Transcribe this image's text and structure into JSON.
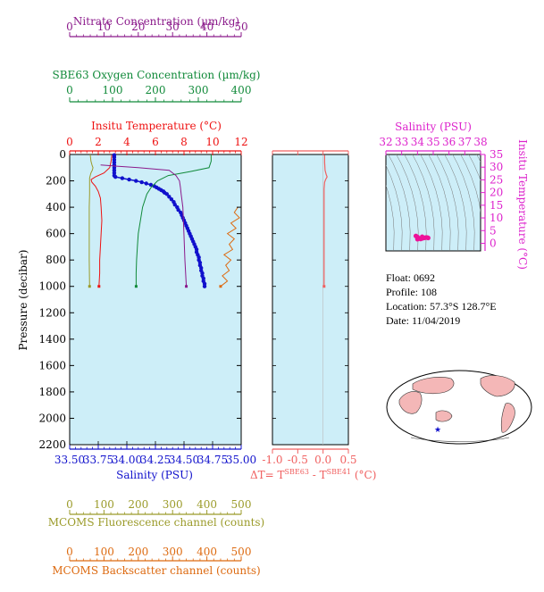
{
  "colors": {
    "nitrate": "#8b1a8b",
    "oxygen": "#118a3a",
    "temperature": "#ee1111",
    "salinity": "#1010cc",
    "fluorescence": "#9b9b2a",
    "backscatter": "#dd6a10",
    "delta": "#f06060",
    "ts_axis": "#dd22cc",
    "ts_points": "#ee1199",
    "plot_bg": "#cdeef8",
    "land": "#f4b7b7",
    "sea": "#ffffff"
  },
  "labels": {
    "nitrate_axis": "Nitrate Concentration (µm/kg)",
    "oxygen_axis": "SBE63 Oxygen Concentration (µm/kg)",
    "temperature_axis": "Insitu Temperature (°C)",
    "pressure_axis": "Pressure (decibar)",
    "salinity_axis": "Salinity (PSU)",
    "fluorescence_axis": "MCOMS Fluorescence channel (counts)",
    "backscatter_axis": "MCOMS Backscatter channel (counts)",
    "delta_prefix": "ΔT= T",
    "delta_sup1": "SBE63",
    "delta_mid": " - T",
    "delta_sup2": "SBE41",
    "delta_unit": " (°C)",
    "ts_top_axis": "Salinity (PSU)",
    "ts_right_axis": "Insitu Temperature (°C)"
  },
  "float_info": {
    "float": "Float:  0692",
    "profile": "Profile:  108",
    "location": "Location:  57.3°S  128.7°E",
    "date": "Date:  11/04/2019"
  },
  "chart_data": [
    {
      "type": "line",
      "panel": "profile",
      "ylabel": "Pressure (decibar)",
      "ylim": [
        2200,
        0
      ],
      "yticks": [
        0,
        200,
        400,
        600,
        800,
        1000,
        1200,
        1400,
        1600,
        1800,
        2000,
        2200
      ],
      "axes": {
        "nitrate": {
          "label": "Nitrate Concentration (µm/kg)",
          "range": [
            0,
            50
          ],
          "ticks": [
            0,
            10,
            20,
            30,
            40,
            50
          ]
        },
        "oxygen": {
          "label": "SBE63 Oxygen Concentration (µm/kg)",
          "range": [
            0,
            400
          ],
          "ticks": [
            0,
            100,
            200,
            300,
            400
          ]
        },
        "temperature": {
          "label": "Insitu Temperature (°C)",
          "range": [
            0,
            12
          ],
          "ticks": [
            0,
            2,
            4,
            6,
            8,
            10,
            12
          ]
        },
        "salinity": {
          "label": "Salinity (PSU)",
          "range": [
            33.5,
            35.0
          ],
          "ticks": [
            "33.50",
            "33.75",
            "34.00",
            "34.25",
            "34.50",
            "34.75",
            "35.00"
          ]
        },
        "fluorescence": {
          "label": "MCOMS Fluorescence channel (counts)",
          "range": [
            0,
            500
          ],
          "ticks": [
            0,
            100,
            200,
            300,
            400,
            500
          ]
        },
        "backscatter": {
          "label": "MCOMS Backscatter channel (counts)",
          "range": [
            0,
            500
          ],
          "ticks": [
            0,
            100,
            200,
            300,
            400,
            500
          ]
        }
      },
      "series": [
        {
          "name": "Salinity",
          "axis": "salinity",
          "pressure": [
            5,
            20,
            40,
            60,
            80,
            100,
            120,
            140,
            160,
            170,
            180,
            190,
            200,
            210,
            220,
            230,
            240,
            250,
            260,
            270,
            280,
            290,
            300,
            320,
            340,
            360,
            380,
            400,
            420,
            440,
            460,
            480,
            500,
            520,
            540,
            560,
            580,
            600,
            620,
            640,
            660,
            680,
            700,
            720,
            740,
            760,
            780,
            800,
            820,
            840,
            860,
            880,
            900,
            920,
            940,
            960,
            980,
            1000
          ],
          "values": [
            33.89,
            33.89,
            33.89,
            33.89,
            33.89,
            33.89,
            33.89,
            33.89,
            33.89,
            33.9,
            33.96,
            34.02,
            34.08,
            34.13,
            34.17,
            34.21,
            34.24,
            34.26,
            34.28,
            34.3,
            34.32,
            34.33,
            34.35,
            34.37,
            34.39,
            34.41,
            34.42,
            34.44,
            34.45,
            34.47,
            34.48,
            34.49,
            34.5,
            34.51,
            34.52,
            34.53,
            34.54,
            34.55,
            34.56,
            34.57,
            34.58,
            34.59,
            34.6,
            34.61,
            34.61,
            34.62,
            34.63,
            34.63,
            34.64,
            34.64,
            34.65,
            34.65,
            34.66,
            34.66,
            34.67,
            34.67,
            34.68,
            34.68
          ]
        },
        {
          "name": "Temperature",
          "axis": "temperature",
          "pressure": [
            5,
            50,
            100,
            140,
            170,
            190,
            210,
            240,
            280,
            330,
            400,
            500,
            600,
            700,
            800,
            900,
            1000
          ],
          "values": [
            2.95,
            2.9,
            2.8,
            2.4,
            1.8,
            1.5,
            1.55,
            1.8,
            2.0,
            2.15,
            2.2,
            2.25,
            2.2,
            2.15,
            2.1,
            2.1,
            2.05
          ]
        },
        {
          "name": "Oxygen",
          "axis": "oxygen",
          "pressure": [
            0,
            50,
            100,
            130,
            160,
            200,
            250,
            300,
            350,
            400,
            500,
            600,
            700,
            800,
            900,
            1000
          ],
          "values": [
            330,
            330,
            325,
            280,
            230,
            205,
            190,
            180,
            175,
            170,
            165,
            160,
            158,
            156,
            155,
            155
          ]
        },
        {
          "name": "Nitrate",
          "axis": "nitrate",
          "pressure": [
            80,
            100,
            120,
            160,
            200,
            250,
            300,
            400,
            600,
            800,
            1000
          ],
          "values": [
            9,
            20,
            29,
            31,
            32,
            32.3,
            32.5,
            33,
            33.3,
            33.6,
            34
          ]
        },
        {
          "name": "Fluorescence",
          "axis": "fluorescence",
          "pressure": [
            0,
            50,
            80,
            100,
            120,
            140,
            160,
            180,
            200,
            250,
            300,
            400,
            600,
            800,
            1000
          ],
          "values": [
            60,
            62,
            65,
            68,
            66,
            62,
            60,
            58,
            58,
            58,
            58,
            57,
            57,
            57,
            58
          ]
        },
        {
          "name": "Backscatter",
          "axis": "backscatter",
          "pressure": [
            400,
            440,
            480,
            520,
            560,
            600,
            640,
            680,
            720,
            760,
            800,
            840,
            880,
            920,
            960,
            1000
          ],
          "values": [
            490,
            480,
            495,
            470,
            485,
            460,
            480,
            465,
            475,
            450,
            470,
            455,
            465,
            445,
            460,
            440
          ]
        }
      ]
    },
    {
      "type": "line",
      "panel": "delta_temperature",
      "xlim": [
        -1.0,
        0.5
      ],
      "xticks": [
        "-1.0",
        "-0.5",
        "0.0",
        "0.5"
      ],
      "ylim": [
        2200,
        0
      ],
      "series": [
        {
          "name": "ΔT",
          "pressure": [
            5,
            60,
            120,
            150,
            170,
            190,
            210,
            260,
            400,
            600,
            800,
            1000
          ],
          "values": [
            0.03,
            0.03,
            0.04,
            0.06,
            0.08,
            0.05,
            0.03,
            0.02,
            0.02,
            0.02,
            0.02,
            0.02
          ]
        }
      ]
    },
    {
      "type": "scatter",
      "panel": "ts_diagram",
      "xlabel": "Salinity (PSU)",
      "ylabel": "Insitu Temperature (°C)",
      "xlim": [
        32,
        38
      ],
      "ylim": [
        -3,
        35
      ],
      "xticks": [
        32,
        33,
        34,
        35,
        36,
        37,
        38
      ],
      "yticks": [
        0,
        5,
        10,
        15,
        20,
        25,
        30,
        35
      ],
      "points": {
        "salinity": [
          33.9,
          34.0,
          34.1,
          34.2,
          34.3,
          34.4,
          34.5,
          34.55,
          34.6,
          34.65,
          34.68,
          34.0,
          34.3
        ],
        "temperature": [
          2.9,
          2.5,
          1.9,
          1.7,
          1.9,
          2.1,
          2.2,
          2.3,
          2.3,
          2.2,
          2.1,
          1.6,
          2.6
        ]
      }
    }
  ]
}
